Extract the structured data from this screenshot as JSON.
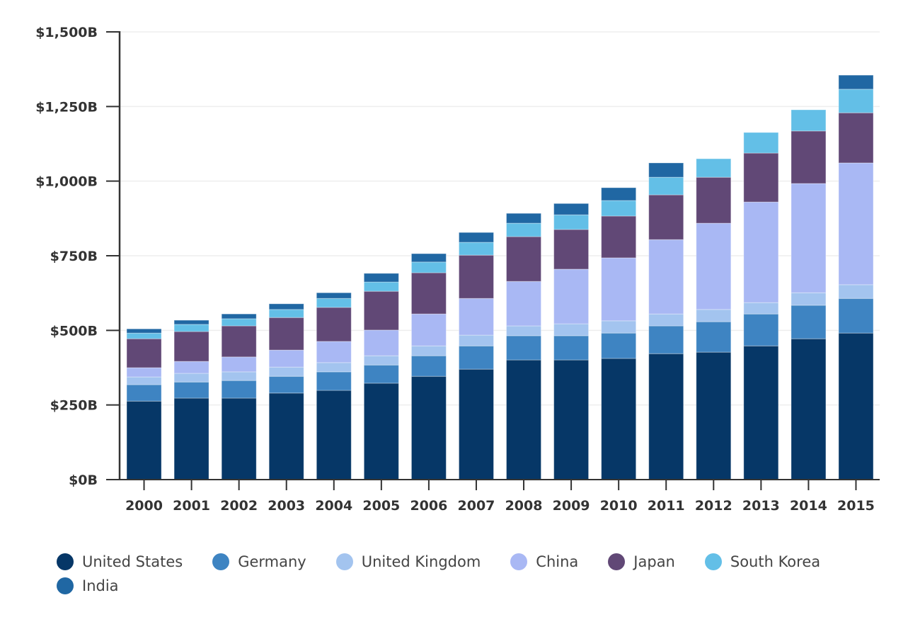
{
  "chart_data": {
    "type": "bar",
    "stacked": true,
    "categories": [
      "2000",
      "2001",
      "2002",
      "2003",
      "2004",
      "2005",
      "2006",
      "2007",
      "2008",
      "2009",
      "2010",
      "2011",
      "2012",
      "2013",
      "2014",
      "2015"
    ],
    "ylim": [
      0,
      1500
    ],
    "yticks": [
      0,
      250,
      500,
      750,
      1000,
      1250,
      1500
    ],
    "ytick_labels": [
      "$0B",
      "$250B",
      "$500B",
      "$750B",
      "$1,000B",
      "$1,250B",
      "$1,500B"
    ],
    "grid": true,
    "legend_placement": "bottom",
    "series": [
      {
        "name": "United States",
        "color": "#063767",
        "values": [
          263,
          273,
          273,
          290,
          299,
          323,
          346,
          370,
          401,
          401,
          406,
          422,
          427,
          448,
          472,
          491
        ]
      },
      {
        "name": "Germany",
        "color": "#3e84c2",
        "values": [
          55,
          54,
          59,
          56,
          62,
          61,
          69,
          78,
          81,
          81,
          85,
          93,
          102,
          107,
          112,
          116
        ]
      },
      {
        "name": "United Kingdom",
        "color": "#a3c4ef",
        "values": [
          26,
          29,
          29,
          31,
          31,
          31,
          33,
          36,
          33,
          40,
          41,
          40,
          41,
          38,
          42,
          46
        ]
      },
      {
        "name": "China",
        "color": "#a9b8f4",
        "values": [
          31,
          40,
          50,
          57,
          71,
          86,
          107,
          123,
          149,
          183,
          211,
          249,
          289,
          337,
          366,
          408
        ]
      },
      {
        "name": "Japan",
        "color": "#614876",
        "values": [
          97,
          100,
          104,
          109,
          114,
          130,
          138,
          145,
          150,
          133,
          140,
          150,
          154,
          164,
          176,
          168
        ]
      },
      {
        "name": "South Korea",
        "color": "#63bfe7",
        "values": [
          19,
          24,
          24,
          27,
          30,
          31,
          36,
          43,
          45,
          49,
          52,
          59,
          62,
          69,
          71,
          79
        ]
      },
      {
        "name": "India",
        "color": "#2067a3",
        "values": [
          14,
          14,
          16,
          19,
          19,
          29,
          28,
          33,
          33,
          38,
          43,
          48,
          0,
          0,
          0,
          47
        ]
      }
    ]
  }
}
